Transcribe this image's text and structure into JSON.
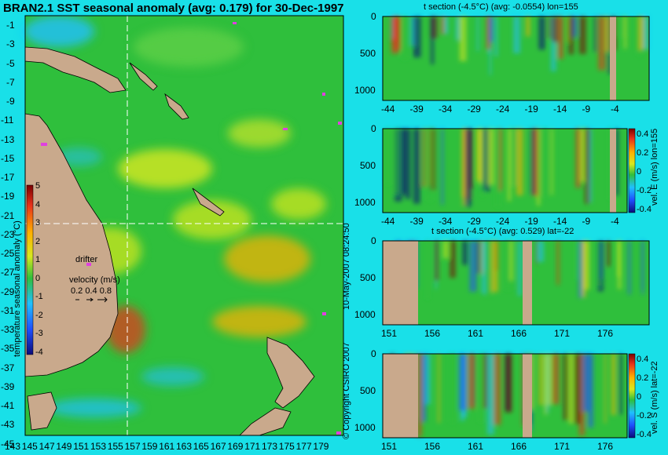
{
  "colors": {
    "background": "#19e0e8",
    "land": "#c9a98c",
    "ocean_base": "#2fbf3c",
    "colormap": [
      "#0b0b7a",
      "#1f4fff",
      "#1fc0ff",
      "#2fbf3c",
      "#d8e81e",
      "#ffb000",
      "#e8321a",
      "#7a0000"
    ]
  },
  "map": {
    "title": "BRAN2.1 SST seasonal anomaly (avg: 0.179) for 30-Dec-1997",
    "lat_labels": [
      "-1",
      "-3",
      "-5",
      "-7",
      "-9",
      "-11",
      "-13",
      "-15",
      "-17",
      "-19",
      "-21",
      "-23",
      "-25",
      "-27",
      "-29",
      "-31",
      "-33",
      "-35",
      "-37",
      "-39",
      "-41",
      "-43",
      "-45"
    ],
    "lon_labels": [
      "143",
      "145",
      "147",
      "149",
      "151",
      "153",
      "155",
      "157",
      "159",
      "161",
      "163",
      "165",
      "167",
      "169",
      "171",
      "173",
      "175",
      "177",
      "179"
    ],
    "colorbar_ticks": [
      "5",
      "4",
      "3",
      "2",
      "1",
      "0",
      "-1",
      "-2",
      "-3",
      "-4"
    ],
    "colorbar_label": "temperature seasonal anomaly (°C)",
    "legend_drifter": "drifter",
    "legend_velocity_title": "velocity (m/s)",
    "legend_velocity_values": "0.2 0.4 0.8",
    "section_line_lon": 155,
    "section_line_lat": -22
  },
  "credits": {
    "timestamp": "10-May-2007 08:24:50",
    "copyright": "© Copyright CSIRO 2007"
  },
  "panels": [
    {
      "title": "t section (-4.5°C) (avg: -0.0554) lon=155",
      "x_ticks": [
        "-44",
        "-39",
        "-34",
        "-29",
        "-24",
        "-19",
        "-14",
        "-9",
        "-4"
      ],
      "y_ticks": [
        "0",
        "500",
        "1000"
      ]
    },
    {
      "title": "",
      "x_ticks": [
        "-44",
        "-39",
        "-34",
        "-29",
        "-24",
        "-19",
        "-14",
        "-9",
        "-4"
      ],
      "y_ticks": [
        "0",
        "500",
        "1000"
      ],
      "colorbar_ticks": [
        "0.4",
        "0.2",
        "0",
        "-0.2",
        "-0.4"
      ],
      "colorbar_label": "vel. E (m/s) lon=155"
    },
    {
      "title": "t section (-4.5°C) (avg: 0.529) lat=-22",
      "x_ticks": [
        "151",
        "156",
        "161",
        "166",
        "171",
        "176"
      ],
      "y_ticks": [
        "0",
        "500",
        "1000"
      ]
    },
    {
      "title": "",
      "x_ticks": [
        "151",
        "156",
        "161",
        "166",
        "171",
        "176"
      ],
      "y_ticks": [
        "0",
        "500",
        "1000"
      ],
      "colorbar_ticks": [
        "0.4",
        "0.2",
        "0",
        "-0.2",
        "-0.4"
      ],
      "colorbar_label": "vel. S (m/s) lat=-22"
    }
  ],
  "chart_data": [
    {
      "type": "heatmap",
      "title": "BRAN2.1 SST seasonal anomaly (avg: 0.179) for 30-Dec-1997",
      "x_range": [
        143,
        180
      ],
      "y_range": [
        -45,
        0
      ],
      "colorbar_range": [
        -4,
        5
      ],
      "colorbar_label": "temperature seasonal anomaly (°C)",
      "average": 0.179
    },
    {
      "type": "heatmap",
      "title": "t section (-4.5°C) (avg: -0.0554) lon=155",
      "x_range": [
        -45,
        0
      ],
      "y_range": [
        1000,
        0
      ],
      "average": -0.0554
    },
    {
      "type": "heatmap",
      "x_range": [
        -45,
        0
      ],
      "y_range": [
        1000,
        0
      ],
      "colorbar_range": [
        -0.4,
        0.4
      ],
      "colorbar_label": "vel. E (m/s) lon=155"
    },
    {
      "type": "heatmap",
      "title": "t section (-4.5°C) (avg: 0.529) lat=-22",
      "x_range": [
        150,
        180
      ],
      "y_range": [
        1000,
        0
      ],
      "average": 0.529
    },
    {
      "type": "heatmap",
      "x_range": [
        150,
        180
      ],
      "y_range": [
        1000,
        0
      ],
      "colorbar_range": [
        -0.4,
        0.4
      ],
      "colorbar_label": "vel. S (m/s) lat=-22"
    }
  ]
}
